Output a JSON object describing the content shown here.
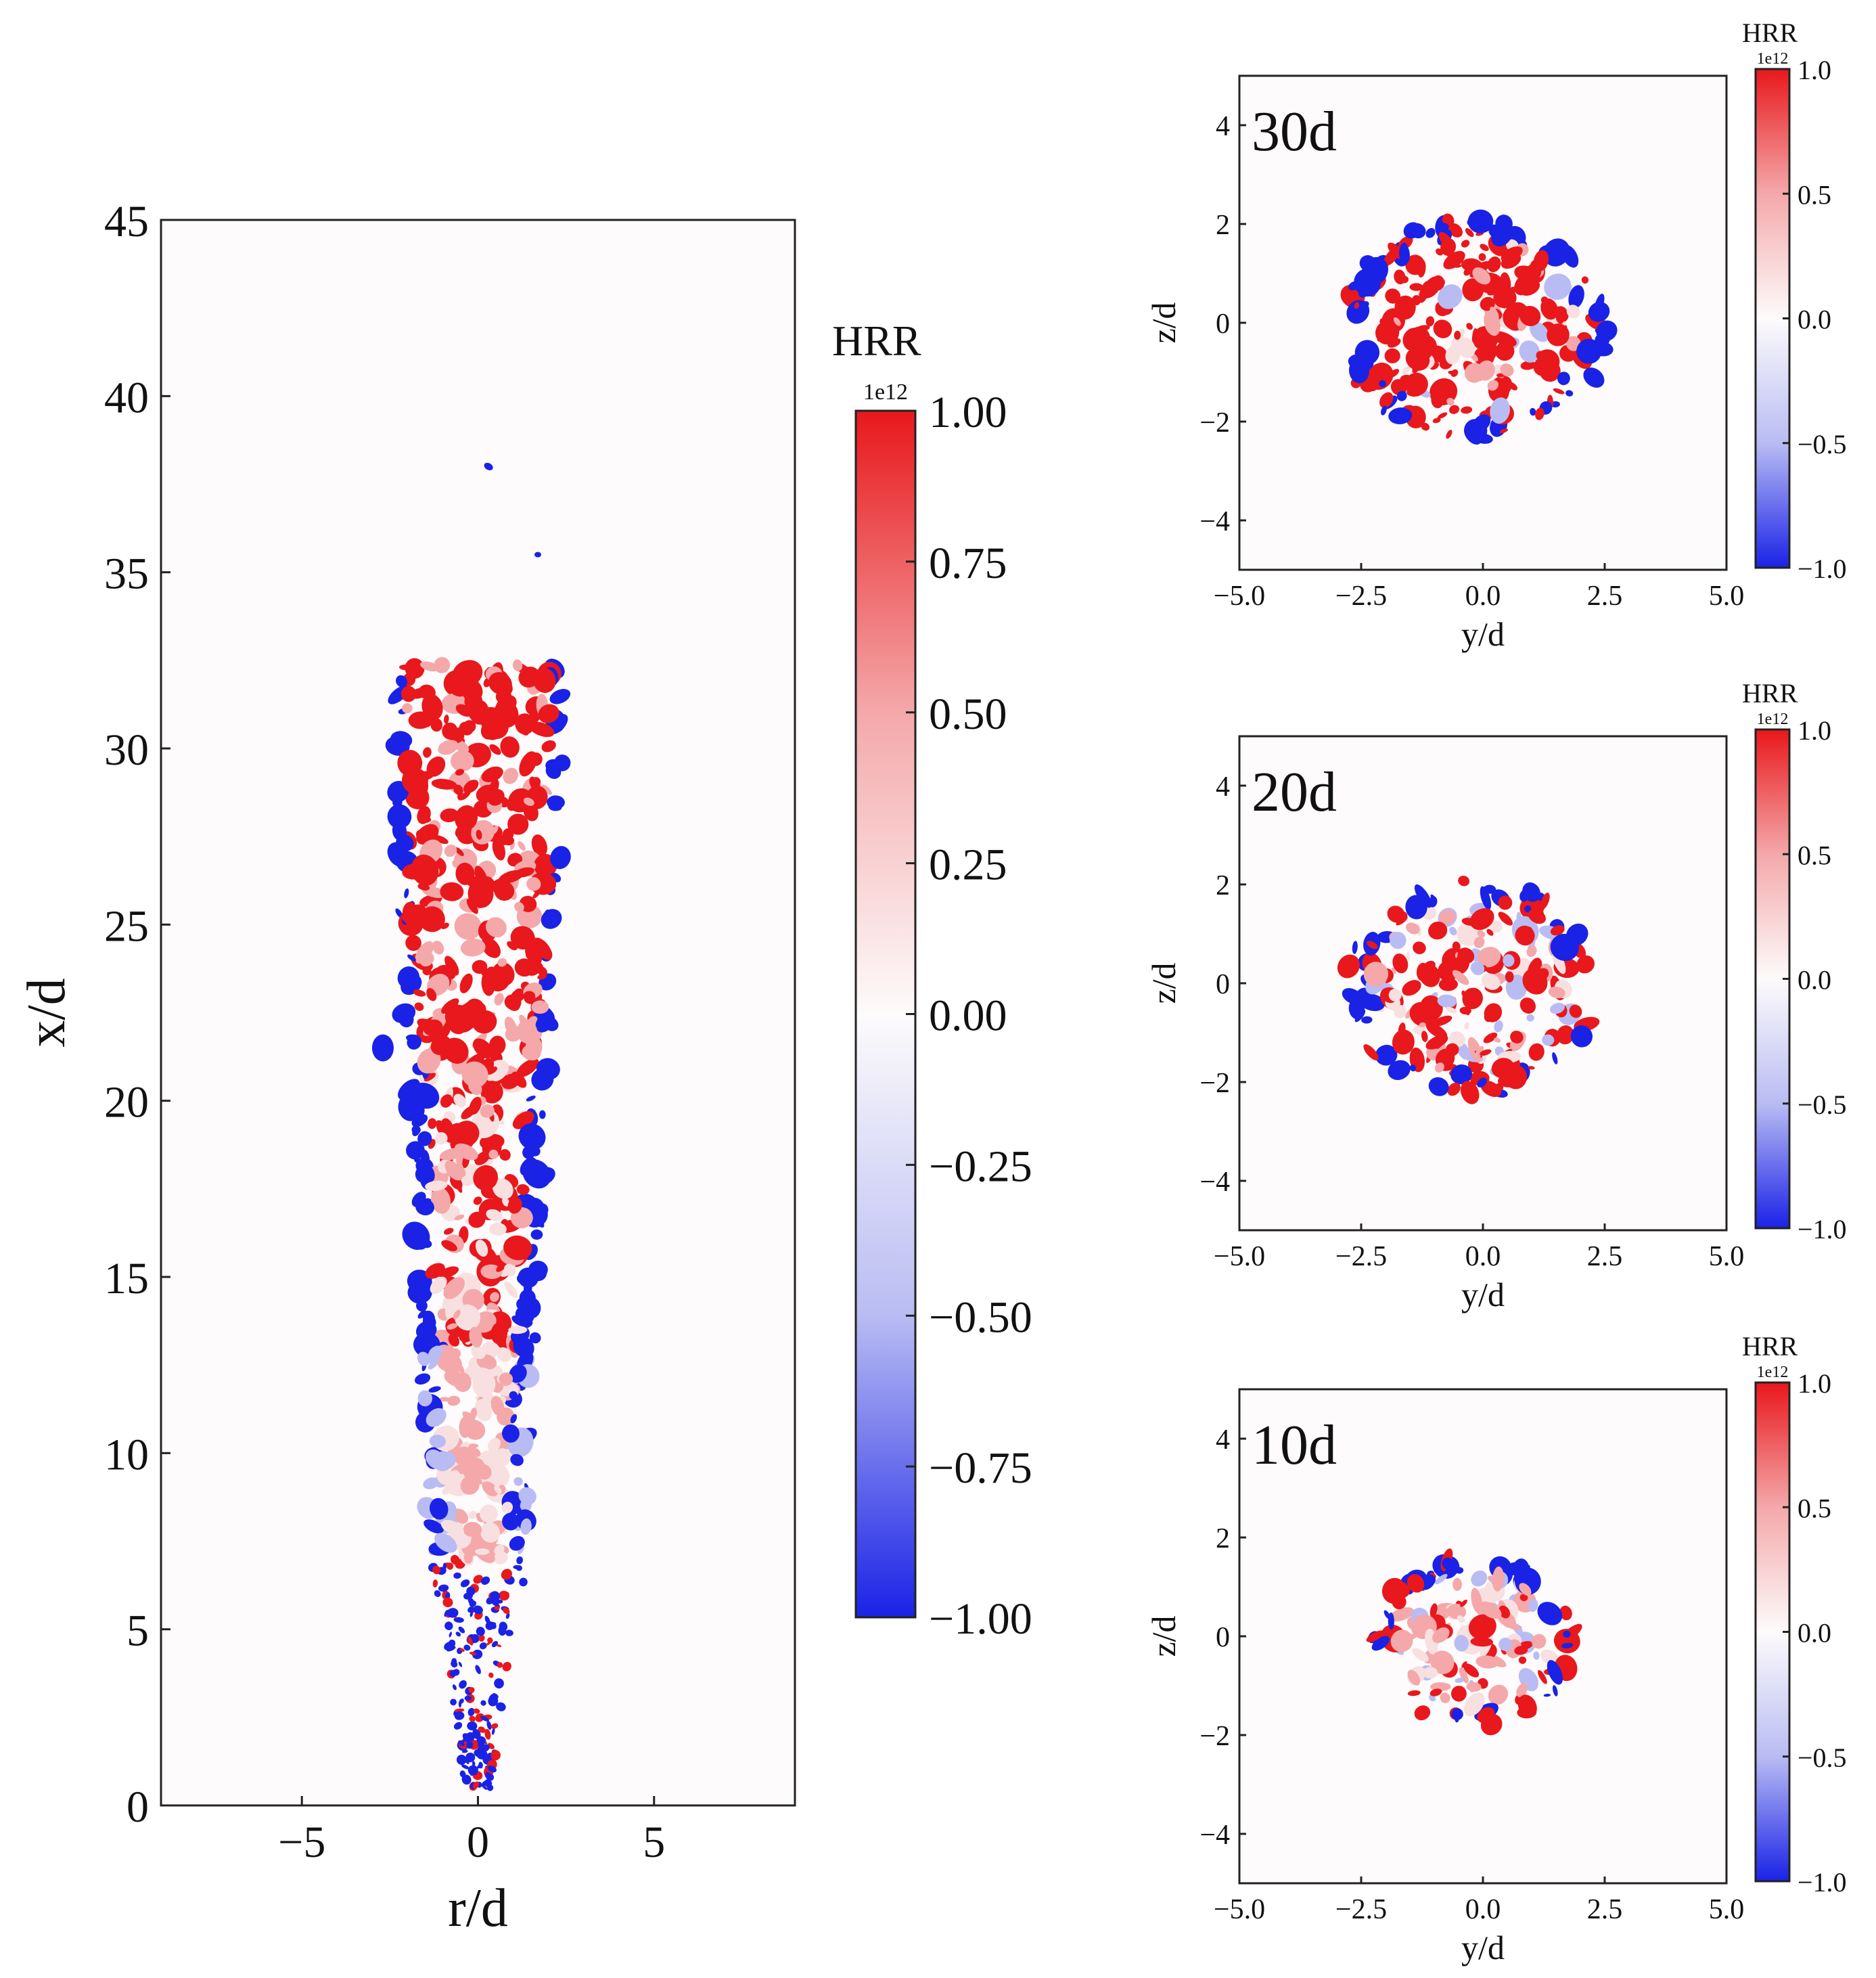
{
  "chart_data": [
    {
      "type": "heatmap",
      "id": "axial",
      "xlabel": "r/d",
      "ylabel": "x/d",
      "xlim": [
        -9,
        9
      ],
      "ylim": [
        0,
        45
      ],
      "xticks": [
        -5,
        0,
        5
      ],
      "yticks": [
        0,
        5,
        10,
        15,
        20,
        25,
        30,
        35,
        40,
        45
      ],
      "colorbar": {
        "title": "HRR",
        "multiplier": "1e12",
        "range": [
          -1.0,
          1.0
        ],
        "ticks": [
          "1.00",
          "0.75",
          "0.50",
          "0.25",
          "0.00",
          "−0.25",
          "−0.50",
          "−0.75",
          "−1.00"
        ]
      }
    },
    {
      "type": "heatmap",
      "id": "slice-30d",
      "annotation": "30d",
      "xlabel": "y/d",
      "ylabel": "z/d",
      "xlim": [
        -5,
        5
      ],
      "ylim": [
        -5,
        5
      ],
      "xticks": [
        "−5.0",
        "−2.5",
        "0.0",
        "2.5",
        "5.0"
      ],
      "yticks": [
        "4",
        "2",
        "0",
        "−2",
        "−4"
      ],
      "colorbar": {
        "title": "HRR",
        "multiplier": "1e12",
        "range": [
          -1.0,
          1.0
        ],
        "ticks": [
          "1.0",
          "0.5",
          "0.0",
          "−0.5",
          "−1.0"
        ]
      }
    },
    {
      "type": "heatmap",
      "id": "slice-20d",
      "annotation": "20d",
      "xlabel": "y/d",
      "ylabel": "z/d",
      "xlim": [
        -5,
        5
      ],
      "ylim": [
        -5,
        5
      ],
      "xticks": [
        "−5.0",
        "−2.5",
        "0.0",
        "2.5",
        "5.0"
      ],
      "yticks": [
        "4",
        "2",
        "0",
        "−2",
        "−4"
      ],
      "colorbar": {
        "title": "HRR",
        "multiplier": "1e12",
        "range": [
          -1.0,
          1.0
        ],
        "ticks": [
          "1.0",
          "0.5",
          "0.0",
          "−0.5",
          "−1.0"
        ]
      }
    },
    {
      "type": "heatmap",
      "id": "slice-10d",
      "annotation": "10d",
      "xlabel": "y/d",
      "ylabel": "z/d",
      "xlim": [
        -5,
        5
      ],
      "ylim": [
        -5,
        5
      ],
      "xticks": [
        "−5.0",
        "−2.5",
        "0.0",
        "2.5",
        "5.0"
      ],
      "yticks": [
        "4",
        "2",
        "0",
        "−2",
        "−4"
      ],
      "colorbar": {
        "title": "HRR",
        "multiplier": "1e12",
        "range": [
          -1.0,
          1.0
        ],
        "ticks": [
          "1.0",
          "0.5",
          "0.0",
          "−0.5",
          "−1.0"
        ]
      }
    }
  ],
  "colors": {
    "positive": "#e8181c",
    "zero": "#fdfbfb",
    "negative": "#1a22e6"
  }
}
